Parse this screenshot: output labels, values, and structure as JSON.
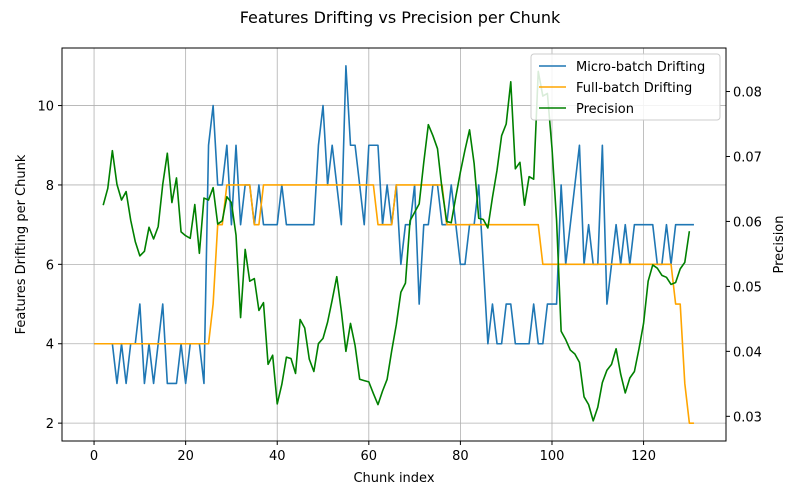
{
  "chart_data": {
    "type": "line",
    "title": "Features Drifting vs Precision per Chunk",
    "xlabel": "Chunk index",
    "ylabel": "Features Drifting per Chunk",
    "y2label": "Precision",
    "xlim": [
      -7,
      138
    ],
    "ylim": [
      1.55,
      11.45
    ],
    "y2lim": [
      0.0262,
      0.0867
    ],
    "x_ticks": [
      0,
      20,
      40,
      60,
      80,
      100,
      120
    ],
    "y_ticks": [
      2,
      4,
      6,
      8,
      10
    ],
    "y2_ticks": [
      0.03,
      0.04,
      0.05,
      0.06,
      0.07,
      0.08
    ],
    "y2_tick_labels": [
      "0.03",
      "0.04",
      "0.05",
      "0.06",
      "0.07",
      "0.08"
    ],
    "grid": true,
    "legend_position": "top-right",
    "series": [
      {
        "name": "Micro-batch Drifting",
        "axis": "left",
        "color": "#1f77b4",
        "start_x": 0,
        "values": [
          4,
          4,
          4,
          4,
          4,
          3,
          4,
          3,
          4,
          4,
          5,
          3,
          4,
          3,
          4,
          5,
          3,
          3,
          3,
          4,
          3,
          4,
          4,
          4,
          3,
          9,
          10,
          8,
          8,
          9,
          7,
          9,
          7,
          8,
          8,
          7,
          8,
          7,
          7,
          7,
          7,
          8,
          7,
          7,
          7,
          7,
          7,
          7,
          7,
          9,
          10,
          8,
          9,
          8,
          7,
          11,
          9,
          9,
          8,
          7,
          9,
          9,
          9,
          7,
          8,
          7,
          8,
          6,
          7,
          7,
          8,
          5,
          7,
          7,
          8,
          8,
          7,
          7,
          8,
          7,
          6,
          6,
          7,
          7,
          8,
          6,
          4,
          5,
          4,
          4,
          5,
          5,
          4,
          4,
          4,
          4,
          5,
          4,
          4,
          5,
          5,
          5,
          8,
          6,
          7,
          8,
          9,
          6,
          7,
          6,
          6,
          9,
          5,
          6,
          7,
          6,
          7,
          6,
          7,
          7,
          7,
          7,
          7,
          6,
          6,
          7,
          6,
          7,
          7,
          7,
          7,
          7
        ]
      },
      {
        "name": "Full-batch Drifting",
        "axis": "left",
        "color": "#ffa500",
        "start_x": 0,
        "values": [
          4,
          4,
          4,
          4,
          4,
          4,
          4,
          4,
          4,
          4,
          4,
          4,
          4,
          4,
          4,
          4,
          4,
          4,
          4,
          4,
          4,
          4,
          4,
          4,
          4,
          4,
          5,
          7,
          7,
          8,
          8,
          8,
          8,
          8,
          8,
          7,
          7,
          8,
          8,
          8,
          8,
          8,
          8,
          8,
          8,
          8,
          8,
          8,
          8,
          8,
          8,
          8,
          8,
          8,
          8,
          8,
          8,
          8,
          8,
          8,
          8,
          8,
          7,
          7,
          7,
          7,
          8,
          8,
          8,
          8,
          8,
          8,
          8,
          8,
          8,
          8,
          8,
          7,
          7,
          7,
          7,
          7,
          7,
          7,
          7,
          7,
          7,
          7,
          7,
          7,
          7,
          7,
          7,
          7,
          7,
          7,
          7,
          7,
          6,
          6,
          6,
          6,
          6,
          6,
          6,
          6,
          6,
          6,
          6,
          6,
          6,
          6,
          6,
          6,
          6,
          6,
          6,
          6,
          6,
          6,
          6,
          6,
          6,
          6,
          6,
          6,
          6,
          5,
          5,
          3,
          2,
          2
        ]
      },
      {
        "name": "Precision",
        "axis": "right",
        "color": "#008000",
        "start_x": 2,
        "values": [
          0.0625,
          0.0651,
          0.0709,
          0.0657,
          0.0633,
          0.0646,
          0.0602,
          0.0569,
          0.0547,
          0.0554,
          0.0591,
          0.0573,
          0.0592,
          0.0657,
          0.0705,
          0.0629,
          0.0667,
          0.0584,
          0.0578,
          0.0574,
          0.0626,
          0.0551,
          0.0636,
          0.0633,
          0.0652,
          0.0596,
          0.0601,
          0.0638,
          0.0629,
          0.0579,
          0.0452,
          0.0557,
          0.0508,
          0.0512,
          0.0463,
          0.0475,
          0.038,
          0.0394,
          0.0319,
          0.0349,
          0.0391,
          0.0389,
          0.0366,
          0.0449,
          0.0436,
          0.0388,
          0.0369,
          0.0412,
          0.042,
          0.0445,
          0.0479,
          0.0515,
          0.0462,
          0.04,
          0.0443,
          0.0409,
          0.0357,
          0.0355,
          0.0353,
          0.0335,
          0.0318,
          0.0339,
          0.0357,
          0.0401,
          0.0441,
          0.0491,
          0.0505,
          0.0601,
          0.0614,
          0.0627,
          0.0691,
          0.0749,
          0.0732,
          0.0712,
          0.0649,
          0.06,
          0.0598,
          0.0638,
          0.0676,
          0.071,
          0.0741,
          0.0689,
          0.0605,
          0.0603,
          0.059,
          0.0637,
          0.0679,
          0.0732,
          0.075,
          0.0815,
          0.0681,
          0.0691,
          0.0625,
          0.0669,
          0.0665,
          0.0831,
          0.0793,
          0.0797,
          0.0713,
          0.0602,
          0.0431,
          0.0418,
          0.0402,
          0.0396,
          0.0383,
          0.033,
          0.0318,
          0.0293,
          0.0314,
          0.0352,
          0.0371,
          0.038,
          0.0404,
          0.0365,
          0.0336,
          0.0359,
          0.0369,
          0.0404,
          0.0443,
          0.0508,
          0.0533,
          0.0528,
          0.0517,
          0.0514,
          0.0503,
          0.0506,
          0.0527,
          0.0537,
          0.0585
        ]
      }
    ]
  }
}
